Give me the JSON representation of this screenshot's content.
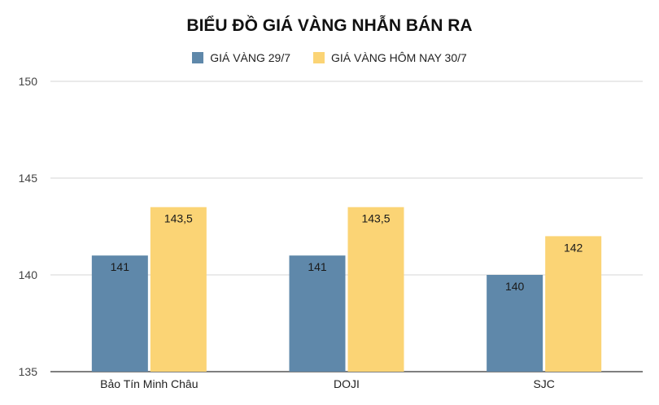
{
  "chart_data": {
    "type": "bar",
    "title": "BIỂU ĐỒ GIÁ VÀNG NHẪN BÁN RA",
    "categories": [
      "Bảo Tín Minh Châu",
      "DOJI",
      "SJC"
    ],
    "series": [
      {
        "name": "GIÁ VÀNG 29/7",
        "values": [
          141,
          141,
          140
        ],
        "labels": [
          "141",
          "141",
          "140"
        ],
        "color": "#5f88aa"
      },
      {
        "name": "GIÁ VÀNG HÔM NAY 30/7",
        "values": [
          143.5,
          143.5,
          142
        ],
        "labels": [
          "143,5",
          "143,5",
          "142"
        ],
        "color": "#fbd475"
      }
    ],
    "ylim": [
      135,
      150
    ],
    "yticks": [
      135,
      140,
      145,
      150
    ],
    "grid": true,
    "legend_position": "top",
    "xlabel": "",
    "ylabel": ""
  }
}
